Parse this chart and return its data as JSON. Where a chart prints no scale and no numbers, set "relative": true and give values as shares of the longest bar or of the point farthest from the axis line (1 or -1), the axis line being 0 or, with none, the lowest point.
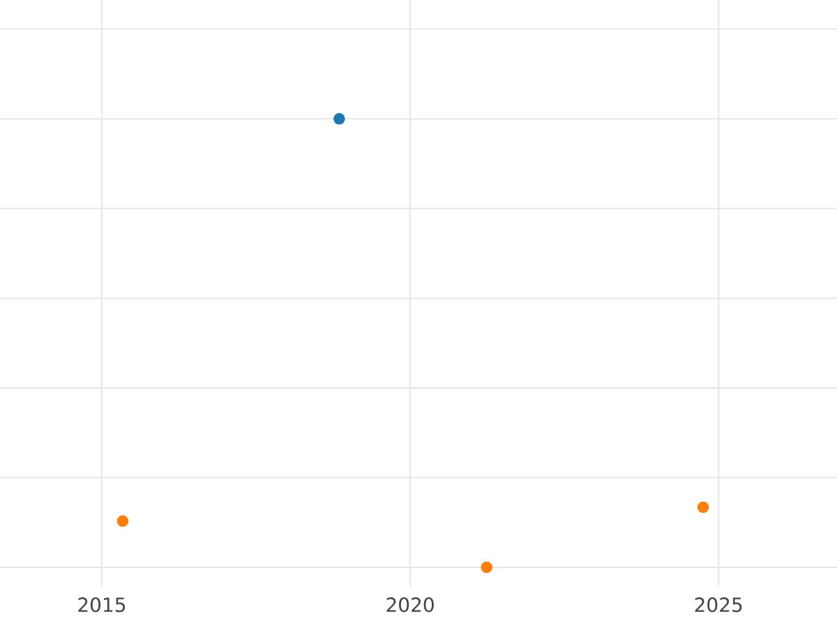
{
  "chart_data": {
    "type": "scatter",
    "relative": true,
    "xlim": [
      2013.35,
      2026.92
    ],
    "xticks": [
      2015,
      2020,
      2025
    ],
    "grid": true,
    "marker": "circle",
    "tick_labels": "x",
    "series": [
      {
        "color": "#1f77b4",
        "x": [
          2018.85
        ],
        "values": [
          1
        ]
      },
      {
        "color": "#ff7f0e",
        "x": [
          2015.34,
          2021.24,
          2024.75
        ],
        "values": [
          0.103,
          0,
          0.134
        ]
      }
    ]
  }
}
